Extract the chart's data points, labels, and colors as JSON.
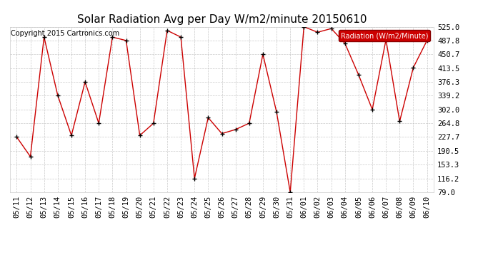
{
  "title": "Solar Radiation Avg per Day W/m2/minute 20150610",
  "copyright": "Copyright 2015 Cartronics.com",
  "legend_label": "Radiation (W/m2/Minute)",
  "dates": [
    "05/11",
    "05/12",
    "05/13",
    "05/14",
    "05/15",
    "05/16",
    "05/17",
    "05/18",
    "05/19",
    "05/20",
    "05/21",
    "05/22",
    "05/23",
    "05/24",
    "05/25",
    "05/26",
    "05/27",
    "05/28",
    "05/29",
    "05/30",
    "05/31",
    "06/01",
    "06/02",
    "06/03",
    "06/04",
    "06/05",
    "06/06",
    "06/07",
    "06/08",
    "06/09",
    "06/10"
  ],
  "values": [
    227.7,
    175.0,
    497.0,
    340.0,
    232.0,
    376.3,
    264.8,
    497.0,
    487.8,
    232.0,
    264.8,
    515.0,
    497.0,
    116.2,
    280.0,
    237.0,
    248.0,
    265.0,
    450.7,
    295.0,
    79.0,
    525.0,
    510.0,
    520.0,
    480.0,
    395.0,
    302.0,
    490.0,
    270.0,
    415.0,
    487.8
  ],
  "ylim": [
    79.0,
    525.0
  ],
  "yticks": [
    79.0,
    116.2,
    153.3,
    190.5,
    227.7,
    264.8,
    302.0,
    339.2,
    376.3,
    413.5,
    450.7,
    487.8,
    525.0
  ],
  "line_color": "#cc0000",
  "marker_color": "#000000",
  "bg_color": "#ffffff",
  "grid_color": "#bbbbbb",
  "legend_bg": "#cc0000",
  "legend_text_color": "#ffffff",
  "title_fontsize": 11,
  "copyright_fontsize": 7,
  "tick_fontsize": 7.5
}
